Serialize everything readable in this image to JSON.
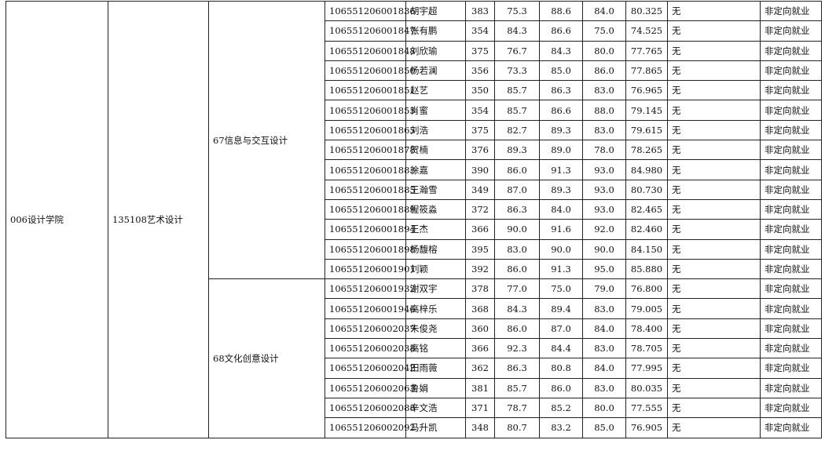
{
  "college": "006设计学院",
  "major": "135108艺术设计",
  "groups": [
    {
      "direction": "67信息与交互设计",
      "rows": [
        [
          "106551206001836",
          "胡宇超",
          "383",
          "75.3",
          "88.6",
          "84.0",
          "80.325",
          "无",
          "非定向就业"
        ],
        [
          "106551206001847",
          "张有鹏",
          "354",
          "84.3",
          "86.6",
          "75.0",
          "74.525",
          "无",
          "非定向就业"
        ],
        [
          "106551206001848",
          "刘欣瑜",
          "375",
          "76.7",
          "84.3",
          "80.0",
          "77.765",
          "无",
          "非定向就业"
        ],
        [
          "106551206001850",
          "杨若澜",
          "356",
          "73.3",
          "85.0",
          "86.0",
          "77.865",
          "无",
          "非定向就业"
        ],
        [
          "106551206001851",
          "赵艺",
          "350",
          "85.7",
          "86.3",
          "83.0",
          "76.965",
          "无",
          "非定向就业"
        ],
        [
          "106551206001855",
          "肖蜜",
          "354",
          "85.7",
          "86.6",
          "88.0",
          "79.145",
          "无",
          "非定向就业"
        ],
        [
          "106551206001865",
          "刘浩",
          "375",
          "82.7",
          "89.3",
          "83.0",
          "79.615",
          "无",
          "非定向就业"
        ],
        [
          "106551206001878",
          "贺楠",
          "376",
          "89.3",
          "89.0",
          "78.0",
          "78.265",
          "无",
          "非定向就业"
        ],
        [
          "106551206001883",
          "徐嘉",
          "390",
          "86.0",
          "91.3",
          "93.0",
          "84.980",
          "无",
          "非定向就业"
        ],
        [
          "106551206001885",
          "王瀚雪",
          "349",
          "87.0",
          "89.3",
          "93.0",
          "80.730",
          "无",
          "非定向就业"
        ],
        [
          "106551206001889",
          "程筱淼",
          "372",
          "86.3",
          "84.0",
          "93.0",
          "82.465",
          "无",
          "非定向就业"
        ],
        [
          "106551206001894",
          "王杰",
          "366",
          "90.0",
          "91.6",
          "92.0",
          "82.460",
          "无",
          "非定向就业"
        ],
        [
          "106551206001898",
          "杨馥榕",
          "395",
          "83.0",
          "90.0",
          "90.0",
          "84.150",
          "无",
          "非定向就业"
        ],
        [
          "106551206001901",
          "刘颖",
          "392",
          "86.0",
          "91.3",
          "95.0",
          "85.880",
          "无",
          "非定向就业"
        ]
      ]
    },
    {
      "direction": "68文化创意设计",
      "rows": [
        [
          "106551206001932",
          "谢双宇",
          "378",
          "77.0",
          "75.0",
          "79.0",
          "76.800",
          "无",
          "非定向就业"
        ],
        [
          "106551206001946",
          "高梓乐",
          "368",
          "84.3",
          "89.4",
          "83.0",
          "79.005",
          "无",
          "非定向就业"
        ],
        [
          "106551206002037",
          "朱俊尧",
          "360",
          "86.0",
          "87.0",
          "84.0",
          "78.400",
          "无",
          "非定向就业"
        ],
        [
          "106551206002038",
          "高铭",
          "366",
          "92.3",
          "84.4",
          "83.0",
          "78.705",
          "无",
          "非定向就业"
        ],
        [
          "106551206002042",
          "田雨薇",
          "362",
          "86.3",
          "80.8",
          "84.0",
          "77.995",
          "无",
          "非定向就业"
        ],
        [
          "106551206002063",
          "鲁娟",
          "381",
          "85.7",
          "86.0",
          "83.0",
          "80.035",
          "无",
          "非定向就业"
        ],
        [
          "106551206002088",
          "辛文浩",
          "371",
          "78.7",
          "85.2",
          "80.0",
          "77.555",
          "无",
          "非定向就业"
        ],
        [
          "106551206002092",
          "马升凯",
          "348",
          "80.7",
          "83.2",
          "85.0",
          "76.905",
          "无",
          "非定向就业"
        ]
      ]
    }
  ]
}
